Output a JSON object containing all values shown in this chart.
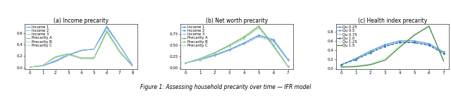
{
  "figure_title": "Figure 1: Assessing household precarity over time — IFR model",
  "subplots": [
    {
      "title": "(a) Income precarity",
      "legend_labels": [
        "Income 1",
        "Income 2",
        "Income 3",
        "Precarity A",
        "Precarity B",
        "Precarity C"
      ],
      "x": [
        0,
        1,
        2,
        3,
        4,
        5,
        6,
        7,
        8
      ],
      "series": [
        {
          "color": "#4a90d9",
          "linestyle": "-",
          "linewidth": 0.7,
          "marker": "None",
          "y": [
            0.01,
            0.03,
            0.12,
            0.22,
            0.3,
            0.32,
            0.72,
            0.38,
            0.04
          ]
        },
        {
          "color": "#4a90d9",
          "linestyle": "--",
          "linewidth": 0.6,
          "marker": "None",
          "y": [
            0.01,
            0.03,
            0.11,
            0.22,
            0.3,
            0.32,
            0.7,
            0.39,
            0.05
          ]
        },
        {
          "color": "#90c0e8",
          "linestyle": "-",
          "linewidth": 0.6,
          "marker": "None",
          "y": [
            0.01,
            0.03,
            0.1,
            0.21,
            0.29,
            0.32,
            0.68,
            0.38,
            0.05
          ]
        },
        {
          "color": "#7ab87a",
          "linestyle": "-",
          "linewidth": 0.7,
          "marker": "None",
          "y": [
            0.01,
            0.04,
            0.19,
            0.24,
            0.17,
            0.17,
            0.64,
            0.29,
            0.03
          ]
        },
        {
          "color": "#7ab87a",
          "linestyle": "--",
          "linewidth": 0.6,
          "marker": "None",
          "y": [
            0.01,
            0.04,
            0.18,
            0.23,
            0.16,
            0.16,
            0.62,
            0.27,
            0.03
          ]
        },
        {
          "color": "#b0d8b0",
          "linestyle": "-",
          "linewidth": 0.6,
          "marker": "None",
          "y": [
            0.01,
            0.04,
            0.17,
            0.22,
            0.15,
            0.15,
            0.6,
            0.26,
            0.02
          ]
        }
      ]
    },
    {
      "title": "(b) Net worth precarity",
      "legend_labels": [
        "Income 1",
        "Income 2",
        "Income 3",
        "Precarity A",
        "Precarity B",
        "Precarity C"
      ],
      "x": [
        0,
        1,
        2,
        3,
        4,
        5,
        6,
        7
      ],
      "series": [
        {
          "color": "#4a90d9",
          "linestyle": "-",
          "linewidth": 0.7,
          "marker": ".",
          "markersize": 1.5,
          "y": [
            0.1,
            0.18,
            0.28,
            0.4,
            0.55,
            0.72,
            0.62,
            0.18
          ]
        },
        {
          "color": "#4a90d9",
          "linestyle": "--",
          "linewidth": 0.6,
          "marker": ".",
          "markersize": 1.5,
          "y": [
            0.1,
            0.17,
            0.27,
            0.39,
            0.53,
            0.7,
            0.6,
            0.17
          ]
        },
        {
          "color": "#90c0e8",
          "linestyle": "-",
          "linewidth": 0.6,
          "marker": ".",
          "markersize": 1.2,
          "y": [
            0.1,
            0.17,
            0.26,
            0.38,
            0.52,
            0.68,
            0.58,
            0.16
          ]
        },
        {
          "color": "#7ab87a",
          "linestyle": "-",
          "linewidth": 0.9,
          "marker": ".",
          "markersize": 1.5,
          "y": [
            0.1,
            0.2,
            0.33,
            0.5,
            0.68,
            0.92,
            0.5,
            0.02
          ]
        },
        {
          "color": "#7ab87a",
          "linestyle": "--",
          "linewidth": 0.6,
          "marker": ".",
          "markersize": 1.5,
          "y": [
            0.1,
            0.19,
            0.32,
            0.48,
            0.66,
            0.9,
            0.48,
            0.02
          ]
        },
        {
          "color": "#b0d8b0",
          "linestyle": "-",
          "linewidth": 0.6,
          "marker": ".",
          "markersize": 1.2,
          "y": [
            0.1,
            0.19,
            0.31,
            0.47,
            0.64,
            0.87,
            0.46,
            0.01
          ]
        }
      ]
    },
    {
      "title": "(c) Health index precarity",
      "legend_labels": [
        "Qu 0.25",
        "Qu 0.5",
        "Qu 0.75",
        "Qu 1.0",
        "Qu 1.25",
        "Qu 1.5"
      ],
      "x": [
        0,
        1,
        2,
        3,
        4,
        5,
        6,
        7
      ],
      "series": [
        {
          "color": "#4a90d9",
          "linestyle": "-",
          "linewidth": 0.7,
          "marker": ".",
          "markersize": 1.5,
          "y": [
            0.08,
            0.22,
            0.38,
            0.52,
            0.6,
            0.6,
            0.54,
            0.36
          ]
        },
        {
          "color": "#4a90d9",
          "linestyle": "--",
          "linewidth": 0.6,
          "marker": ".",
          "markersize": 1.5,
          "y": [
            0.08,
            0.21,
            0.36,
            0.5,
            0.58,
            0.58,
            0.52,
            0.34
          ]
        },
        {
          "color": "#90c0e8",
          "linestyle": "-",
          "linewidth": 0.6,
          "marker": ".",
          "markersize": 1.2,
          "y": [
            0.08,
            0.2,
            0.35,
            0.49,
            0.57,
            0.57,
            0.51,
            0.33
          ]
        },
        {
          "color": "#2060a0",
          "linestyle": "--",
          "linewidth": 0.8,
          "marker": ".",
          "markersize": 1.5,
          "y": [
            0.08,
            0.19,
            0.34,
            0.48,
            0.56,
            0.56,
            0.5,
            0.32
          ]
        },
        {
          "color": "#7ab87a",
          "linestyle": ":",
          "linewidth": 0.7,
          "marker": "None",
          "y": [
            0.03,
            0.05,
            0.1,
            0.22,
            0.5,
            0.75,
            0.9,
            0.18
          ]
        },
        {
          "color": "#3a883a",
          "linestyle": "-",
          "linewidth": 0.9,
          "marker": "None",
          "y": [
            0.03,
            0.04,
            0.08,
            0.18,
            0.46,
            0.72,
            0.92,
            0.16
          ]
        }
      ]
    }
  ],
  "bg_color": "#ffffff",
  "title_fontsize": 5.5,
  "caption_fontsize": 5.5,
  "tick_fontsize": 4.0,
  "legend_fontsize": 3.8,
  "spine_linewidth": 0.4
}
